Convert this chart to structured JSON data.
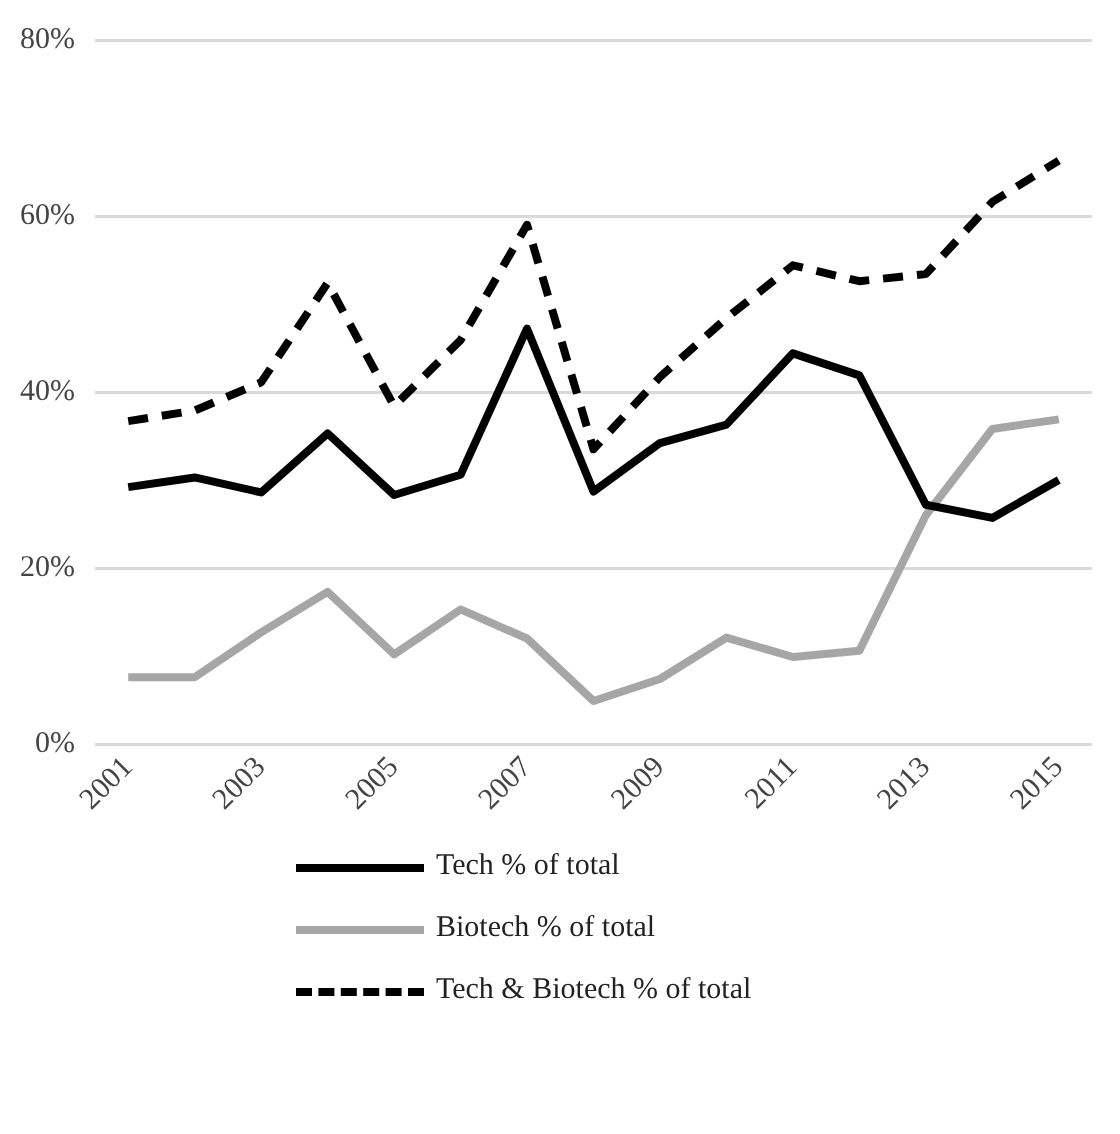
{
  "chart_data": {
    "type": "line",
    "categories": [
      "2001",
      null,
      "2003",
      null,
      "2005",
      null,
      "2007",
      null,
      "2009",
      null,
      "2011",
      null,
      "2013",
      null,
      "2015"
    ],
    "series": [
      {
        "name": "Tech % of total",
        "color": "#000000",
        "line_style": "solid",
        "values": [
          29.2,
          30.3,
          28.6,
          35.3,
          28.3,
          30.6,
          47.2,
          28.7,
          34.2,
          36.3,
          44.4,
          41.9,
          27.2,
          25.7,
          30.0
        ]
      },
      {
        "name": "Biotech % of total",
        "color": "#a6a6a6",
        "line_style": "solid",
        "values": [
          7.6,
          7.6,
          12.7,
          17.3,
          10.2,
          15.3,
          12.0,
          4.9,
          7.4,
          12.1,
          9.9,
          10.6,
          26.0,
          35.8,
          36.9
        ]
      },
      {
        "name": "Tech & Biotech % of total",
        "color": "#000000",
        "line_style": "dashed",
        "values": [
          36.7,
          37.9,
          41.1,
          52.4,
          38.4,
          45.9,
          59.0,
          33.5,
          41.7,
          48.4,
          54.4,
          52.6,
          53.4,
          61.6,
          66.3
        ]
      }
    ],
    "ylim": [
      0,
      80
    ],
    "yticks": [
      {
        "value": 0,
        "label": "0%"
      },
      {
        "value": 20,
        "label": "20%"
      },
      {
        "value": 40,
        "label": "40%"
      },
      {
        "value": 60,
        "label": "60%"
      },
      {
        "value": 80,
        "label": "80%"
      }
    ],
    "grid": "y",
    "legend": "bottom",
    "marker": "none"
  }
}
